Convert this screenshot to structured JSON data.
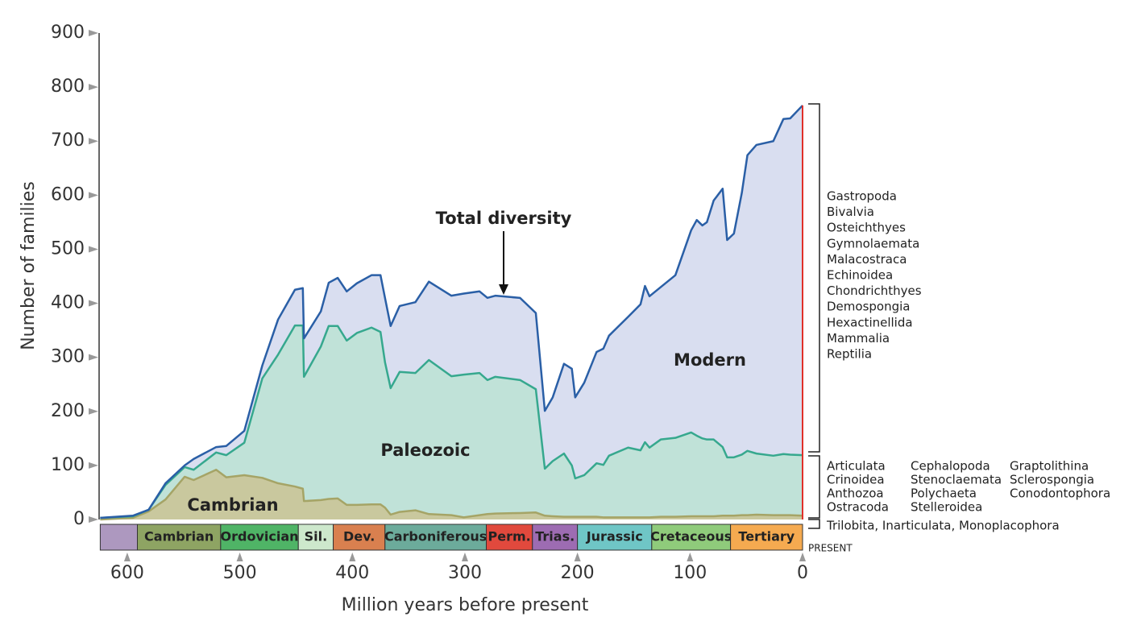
{
  "chart_data": {
    "type": "stacked_area",
    "x_label": "Million years before present",
    "y_label": "Number of families",
    "xlim": [
      625,
      0
    ],
    "xticks": [
      600,
      500,
      400,
      300,
      200,
      100,
      0
    ],
    "ylim": [
      0,
      900
    ],
    "yticks": [
      0,
      100,
      200,
      300,
      400,
      500,
      600,
      700,
      800,
      900
    ],
    "x": [
      624,
      595,
      581,
      566,
      549,
      541,
      521,
      512,
      496,
      480,
      466,
      451,
      444,
      443,
      428,
      421,
      413,
      405,
      396,
      383,
      375,
      371,
      366,
      358,
      344,
      332,
      312,
      301,
      287,
      280,
      273,
      251,
      237,
      229,
      222,
      212,
      205,
      202,
      194,
      183,
      177,
      172,
      155,
      144,
      140,
      136,
      126,
      113,
      99,
      94,
      89,
      85,
      79,
      71,
      67,
      61,
      54,
      49,
      41,
      26,
      17,
      11,
      0
    ],
    "series": [
      {
        "name": "Cambrian",
        "color": "#c9c89e",
        "line_color": "#a5a466",
        "values": [
          0,
          3,
          15,
          37,
          79,
          73,
          92,
          78,
          82,
          77,
          67,
          61,
          57,
          34,
          36,
          38,
          39,
          27,
          27,
          28,
          28,
          22,
          9,
          14,
          17,
          10,
          8,
          4,
          8,
          10,
          11,
          12,
          13,
          7,
          6,
          5,
          5,
          5,
          5,
          5,
          4,
          4,
          4,
          4,
          4,
          4,
          5,
          5,
          6,
          6,
          6,
          6,
          6,
          7,
          7,
          7,
          8,
          8,
          9,
          8,
          8,
          8,
          7
        ]
      },
      {
        "name": "Paleozoic",
        "color": "#c0e2d8",
        "line_color": "#36a88e",
        "values": [
          3,
          3,
          3,
          27,
          18,
          19,
          32,
          41,
          60,
          184,
          238,
          298,
          302,
          230,
          284,
          320,
          319,
          304,
          318,
          327,
          319,
          269,
          234,
          259,
          254,
          285,
          257,
          264,
          263,
          248,
          253,
          246,
          228,
          87,
          102,
          117,
          95,
          71,
          77,
          99,
          97,
          114,
          129,
          124,
          139,
          129,
          143,
          146,
          155,
          149,
          144,
          142,
          142,
          127,
          108,
          108,
          112,
          119,
          113,
          110,
          113,
          112,
          112
        ]
      },
      {
        "name": "Modern",
        "color": "#d9def0",
        "line_color": "#2a5fa6",
        "values": [
          0,
          1,
          0,
          3,
          3,
          20,
          10,
          17,
          22,
          24,
          65,
          66,
          69,
          71,
          65,
          80,
          89,
          91,
          92,
          97,
          105,
          119,
          115,
          122,
          131,
          145,
          149,
          150,
          151,
          152,
          150,
          152,
          141,
          107,
          118,
          166,
          179,
          150,
          171,
          206,
          215,
          222,
          242,
          270,
          289,
          280,
          282,
          301,
          374,
          399,
          394,
          402,
          442,
          478,
          402,
          414,
          484,
          547,
          571,
          582,
          620,
          622,
          647
        ]
      }
    ],
    "periods": [
      {
        "name": null,
        "start": 624,
        "end": 591,
        "color": "#ad98bf"
      },
      {
        "name": "Cambrian",
        "start": 591,
        "end": 517,
        "color": "#8ea463"
      },
      {
        "name": "Ordovician",
        "start": 517,
        "end": 448,
        "color": "#4fb466"
      },
      {
        "name": "Sil.",
        "start": 448,
        "end": 417,
        "color": "#cde8cc"
      },
      {
        "name": "Dev.",
        "start": 417,
        "end": 371,
        "color": "#d9804f"
      },
      {
        "name": "Carboniferous",
        "start": 371,
        "end": 281,
        "color": "#6cab9b"
      },
      {
        "name": "Perm.",
        "start": 281,
        "end": 240,
        "color": "#e1493d"
      },
      {
        "name": "Trias.",
        "start": 240,
        "end": 200,
        "color": "#9d6cb2"
      },
      {
        "name": "Jurassic",
        "start": 200,
        "end": 134,
        "color": "#6fc6c6"
      },
      {
        "name": "Cretaceous",
        "start": 134,
        "end": 64,
        "color": "#8fcb7b"
      },
      {
        "name": "Tertiary",
        "start": 64,
        "end": 0,
        "color": "#f5aa50"
      }
    ],
    "annotation": "Total diversity",
    "present_label": "PRESENT",
    "modern_taxa": [
      "Gastropoda",
      "Bivalvia",
      "Osteichthyes",
      "Gymnolaemata",
      "Malacostraca",
      "Echinoidea",
      "Chondrichthyes",
      "Demospongia",
      "Hexactinellida",
      "Mammalia",
      "Reptilia"
    ],
    "paleozoic_taxa": [
      [
        "Articulata",
        "Crinoidea",
        "Anthozoa",
        "Ostracoda"
      ],
      [
        "Cephalopoda",
        "Stenoclaemata",
        "Polychaeta",
        "Stelleroidea"
      ],
      [
        "Graptolithina",
        "Sclerospongia",
        "Conodontophora"
      ]
    ],
    "cambrian_taxa": "Trilobita, Inarticulata, Monoplacophora"
  }
}
